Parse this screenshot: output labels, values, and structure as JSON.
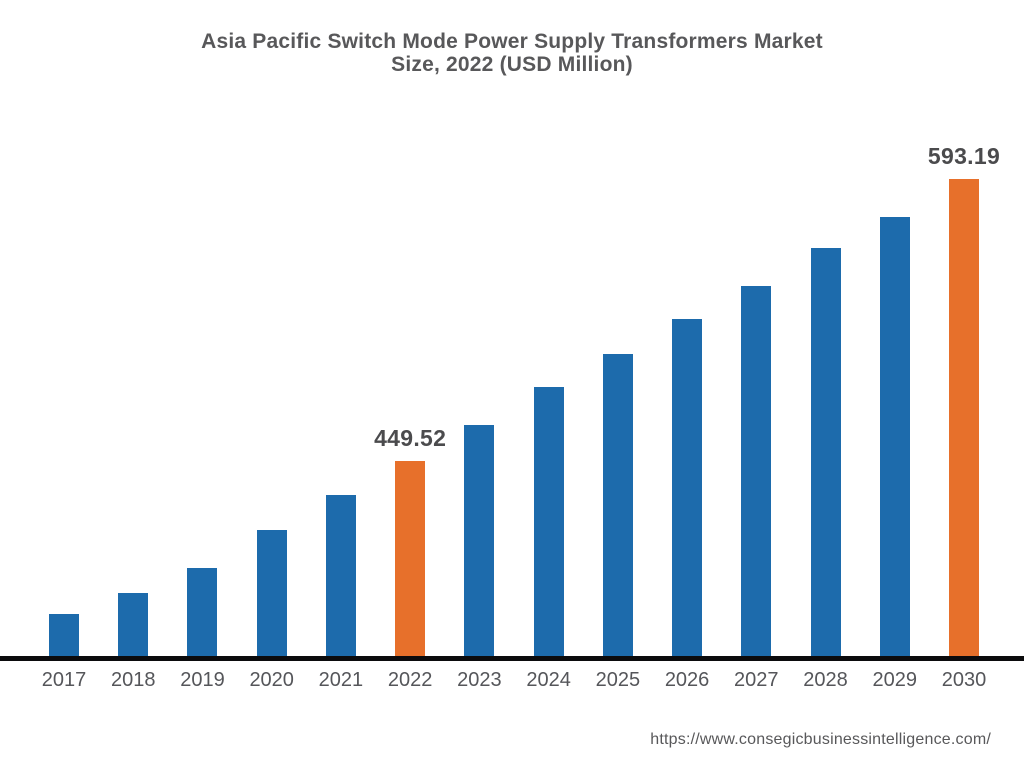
{
  "title": {
    "line1": "Asia Pacific Switch Mode Power Supply Transformers Market",
    "line2": "Size, 2022 (USD Million)"
  },
  "footer": {
    "url": "https://www.consegicbusinessintelligence.com/"
  },
  "colors": {
    "bar": "#1d6bac",
    "bar_highlight": "#e7702b",
    "axis_line": "#0b0b0d",
    "title_text": "#58585a",
    "tick_text": "#55565a",
    "value_label_text": "#4b4b4d",
    "background": "#ffffff"
  },
  "chart_data": {
    "type": "bar",
    "title": "Asia Pacific Switch Mode Power Supply Transformers Market Size, 2022 (USD Million)",
    "categories": [
      "2017",
      "2018",
      "2019",
      "2020",
      "2021",
      "2022",
      "2023",
      "2024",
      "2025",
      "2026",
      "2027",
      "2028",
      "2029",
      "2030"
    ],
    "values": [
      371.6,
      382.3,
      395.0,
      414.4,
      432.2,
      449.52,
      467.9,
      487.2,
      504.0,
      521.9,
      538.7,
      558.0,
      573.8,
      593.19
    ],
    "labeled_points": {
      "2022": "449.52",
      "2030": "593.19"
    },
    "highlighted_categories": [
      "2022",
      "2030"
    ],
    "xlabel": "",
    "ylabel": "",
    "ylim": [
      350,
      600
    ],
    "grid": false,
    "legend": false
  }
}
